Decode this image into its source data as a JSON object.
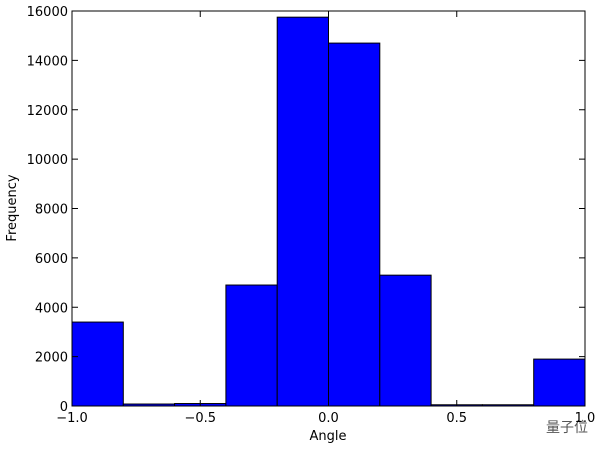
{
  "chart_data": {
    "type": "histogram",
    "x_label": "Angle",
    "y_label": "Frequency",
    "bins": [
      -1.0,
      -0.8,
      -0.6,
      -0.4,
      -0.2,
      0.0,
      0.2,
      0.4,
      0.6,
      0.8,
      1.0
    ],
    "values": [
      3400,
      80,
      100,
      4900,
      15750,
      14700,
      5300,
      50,
      50,
      1900
    ],
    "color": "#0000ff",
    "xlim": [
      -1.0,
      1.0
    ],
    "xticks": [
      {
        "value": -1.0,
        "label": "−1.0"
      },
      {
        "value": -0.5,
        "label": "−0.5"
      },
      {
        "value": 0.0,
        "label": "0.0"
      },
      {
        "value": 0.5,
        "label": "0.5"
      },
      {
        "value": 1.0,
        "label": "1.0"
      }
    ],
    "ylim": [
      0,
      16000
    ],
    "yticks": [
      0,
      2000,
      4000,
      6000,
      8000,
      10000,
      12000,
      14000,
      16000
    ],
    "grid": false,
    "watermark": "量子位"
  }
}
